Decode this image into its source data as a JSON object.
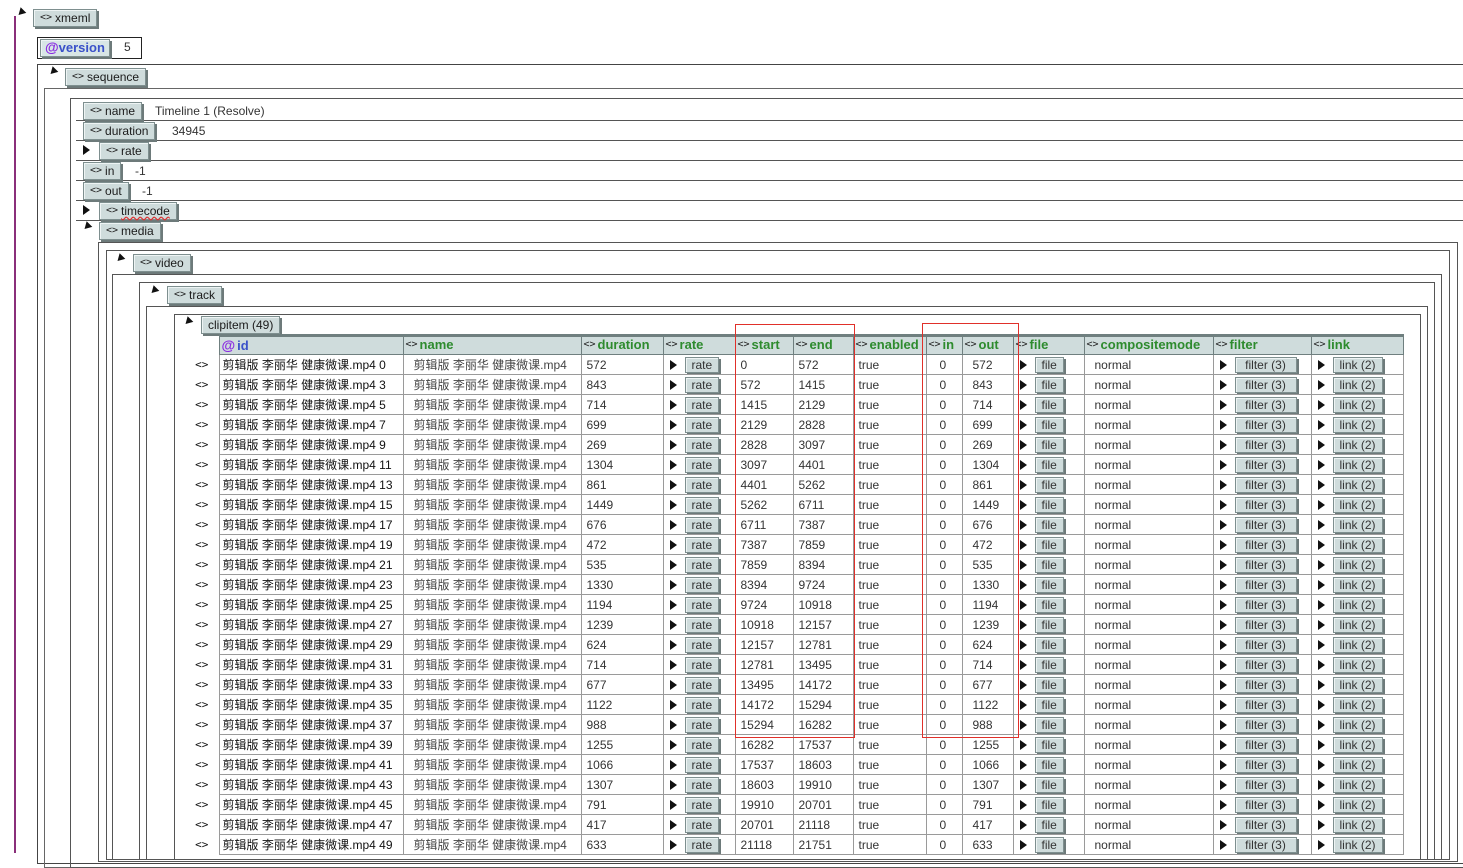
{
  "tree": {
    "xmeml": "xmeml",
    "version_label": "version",
    "version_value": "5",
    "sequence": "sequence",
    "name_label": "name",
    "name_value": "Timeline 1 (Resolve)",
    "duration_label": "duration",
    "duration_value": "34945",
    "rate_label": "rate",
    "in_label": "in",
    "in_value": "-1",
    "out_label": "out",
    "out_value": "-1",
    "timecode_label": "timecode",
    "media_label": "media",
    "video_label": "video",
    "track_label": "track",
    "clipitem_label": "clipitem (49)"
  },
  "columns": [
    "id",
    "name",
    "duration",
    "rate",
    "start",
    "end",
    "enabled",
    "in",
    "out",
    "file",
    "compositemode",
    "filter",
    "link"
  ],
  "row_marker": "<>",
  "cell_buttons": {
    "rate": "rate",
    "file": "file",
    "filter": "filter (3)",
    "link": "link (2)"
  },
  "rows": [
    {
      "id": "剪辑版 李丽华 健康微课.mp4 0",
      "name": "剪辑版 李丽华 健康微课.mp4",
      "duration": "572",
      "start": "0",
      "end": "572",
      "enabled": "true",
      "in": "0",
      "out": "572",
      "compositemode": "normal"
    },
    {
      "id": "剪辑版 李丽华 健康微课.mp4 3",
      "name": "剪辑版 李丽华 健康微课.mp4",
      "duration": "843",
      "start": "572",
      "end": "1415",
      "enabled": "true",
      "in": "0",
      "out": "843",
      "compositemode": "normal"
    },
    {
      "id": "剪辑版 李丽华 健康微课.mp4 5",
      "name": "剪辑版 李丽华 健康微课.mp4",
      "duration": "714",
      "start": "1415",
      "end": "2129",
      "enabled": "true",
      "in": "0",
      "out": "714",
      "compositemode": "normal"
    },
    {
      "id": "剪辑版 李丽华 健康微课.mp4 7",
      "name": "剪辑版 李丽华 健康微课.mp4",
      "duration": "699",
      "start": "2129",
      "end": "2828",
      "enabled": "true",
      "in": "0",
      "out": "699",
      "compositemode": "normal"
    },
    {
      "id": "剪辑版 李丽华 健康微课.mp4 9",
      "name": "剪辑版 李丽华 健康微课.mp4",
      "duration": "269",
      "start": "2828",
      "end": "3097",
      "enabled": "true",
      "in": "0",
      "out": "269",
      "compositemode": "normal"
    },
    {
      "id": "剪辑版 李丽华 健康微课.mp4 11",
      "name": "剪辑版 李丽华 健康微课.mp4",
      "duration": "1304",
      "start": "3097",
      "end": "4401",
      "enabled": "true",
      "in": "0",
      "out": "1304",
      "compositemode": "normal"
    },
    {
      "id": "剪辑版 李丽华 健康微课.mp4 13",
      "name": "剪辑版 李丽华 健康微课.mp4",
      "duration": "861",
      "start": "4401",
      "end": "5262",
      "enabled": "true",
      "in": "0",
      "out": "861",
      "compositemode": "normal"
    },
    {
      "id": "剪辑版 李丽华 健康微课.mp4 15",
      "name": "剪辑版 李丽华 健康微课.mp4",
      "duration": "1449",
      "start": "5262",
      "end": "6711",
      "enabled": "true",
      "in": "0",
      "out": "1449",
      "compositemode": "normal"
    },
    {
      "id": "剪辑版 李丽华 健康微课.mp4 17",
      "name": "剪辑版 李丽华 健康微课.mp4",
      "duration": "676",
      "start": "6711",
      "end": "7387",
      "enabled": "true",
      "in": "0",
      "out": "676",
      "compositemode": "normal"
    },
    {
      "id": "剪辑版 李丽华 健康微课.mp4 19",
      "name": "剪辑版 李丽华 健康微课.mp4",
      "duration": "472",
      "start": "7387",
      "end": "7859",
      "enabled": "true",
      "in": "0",
      "out": "472",
      "compositemode": "normal"
    },
    {
      "id": "剪辑版 李丽华 健康微课.mp4 21",
      "name": "剪辑版 李丽华 健康微课.mp4",
      "duration": "535",
      "start": "7859",
      "end": "8394",
      "enabled": "true",
      "in": "0",
      "out": "535",
      "compositemode": "normal"
    },
    {
      "id": "剪辑版 李丽华 健康微课.mp4 23",
      "name": "剪辑版 李丽华 健康微课.mp4",
      "duration": "1330",
      "start": "8394",
      "end": "9724",
      "enabled": "true",
      "in": "0",
      "out": "1330",
      "compositemode": "normal"
    },
    {
      "id": "剪辑版 李丽华 健康微课.mp4 25",
      "name": "剪辑版 李丽华 健康微课.mp4",
      "duration": "1194",
      "start": "9724",
      "end": "10918",
      "enabled": "true",
      "in": "0",
      "out": "1194",
      "compositemode": "normal"
    },
    {
      "id": "剪辑版 李丽华 健康微课.mp4 27",
      "name": "剪辑版 李丽华 健康微课.mp4",
      "duration": "1239",
      "start": "10918",
      "end": "12157",
      "enabled": "true",
      "in": "0",
      "out": "1239",
      "compositemode": "normal"
    },
    {
      "id": "剪辑版 李丽华 健康微课.mp4 29",
      "name": "剪辑版 李丽华 健康微课.mp4",
      "duration": "624",
      "start": "12157",
      "end": "12781",
      "enabled": "true",
      "in": "0",
      "out": "624",
      "compositemode": "normal"
    },
    {
      "id": "剪辑版 李丽华 健康微课.mp4 31",
      "name": "剪辑版 李丽华 健康微课.mp4",
      "duration": "714",
      "start": "12781",
      "end": "13495",
      "enabled": "true",
      "in": "0",
      "out": "714",
      "compositemode": "normal"
    },
    {
      "id": "剪辑版 李丽华 健康微课.mp4 33",
      "name": "剪辑版 李丽华 健康微课.mp4",
      "duration": "677",
      "start": "13495",
      "end": "14172",
      "enabled": "true",
      "in": "0",
      "out": "677",
      "compositemode": "normal"
    },
    {
      "id": "剪辑版 李丽华 健康微课.mp4 35",
      "name": "剪辑版 李丽华 健康微课.mp4",
      "duration": "1122",
      "start": "14172",
      "end": "15294",
      "enabled": "true",
      "in": "0",
      "out": "1122",
      "compositemode": "normal"
    },
    {
      "id": "剪辑版 李丽华 健康微课.mp4 37",
      "name": "剪辑版 李丽华 健康微课.mp4",
      "duration": "988",
      "start": "15294",
      "end": "16282",
      "enabled": "true",
      "in": "0",
      "out": "988",
      "compositemode": "normal"
    },
    {
      "id": "剪辑版 李丽华 健康微课.mp4 39",
      "name": "剪辑版 李丽华 健康微课.mp4",
      "duration": "1255",
      "start": "16282",
      "end": "17537",
      "enabled": "true",
      "in": "0",
      "out": "1255",
      "compositemode": "normal"
    },
    {
      "id": "剪辑版 李丽华 健康微课.mp4 41",
      "name": "剪辑版 李丽华 健康微课.mp4",
      "duration": "1066",
      "start": "17537",
      "end": "18603",
      "enabled": "true",
      "in": "0",
      "out": "1066",
      "compositemode": "normal"
    },
    {
      "id": "剪辑版 李丽华 健康微课.mp4 43",
      "name": "剪辑版 李丽华 健康微课.mp4",
      "duration": "1307",
      "start": "18603",
      "end": "19910",
      "enabled": "true",
      "in": "0",
      "out": "1307",
      "compositemode": "normal"
    },
    {
      "id": "剪辑版 李丽华 健康微课.mp4 45",
      "name": "剪辑版 李丽华 健康微课.mp4",
      "duration": "791",
      "start": "19910",
      "end": "20701",
      "enabled": "true",
      "in": "0",
      "out": "791",
      "compositemode": "normal"
    },
    {
      "id": "剪辑版 李丽华 健康微课.mp4 47",
      "name": "剪辑版 李丽华 健康微课.mp4",
      "duration": "417",
      "start": "20701",
      "end": "21118",
      "enabled": "true",
      "in": "0",
      "out": "417",
      "compositemode": "normal"
    },
    {
      "id": "剪辑版 李丽华 健康微课.mp4 49",
      "name": "剪辑版 李丽华 健康微课.mp4",
      "duration": "633",
      "start": "21118",
      "end": "21751",
      "enabled": "true",
      "in": "0",
      "out": "633",
      "compositemode": "normal"
    }
  ],
  "colors": {
    "tag_bg": "#cfdcdc",
    "col_header_text": "#2e8b2e",
    "attr_text": "#3a51c9",
    "attr_symbol": "#8a2be2",
    "highlight": "#e0302a",
    "outer_line": "#800080"
  }
}
